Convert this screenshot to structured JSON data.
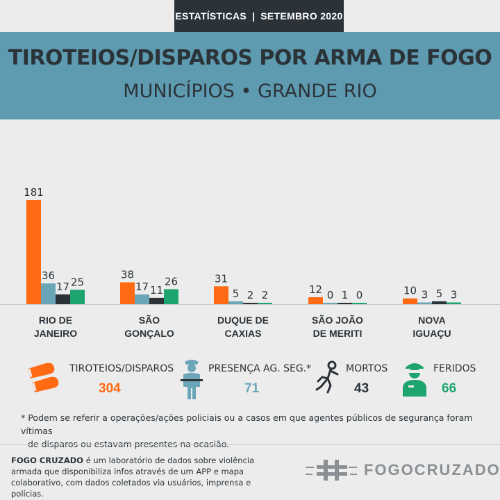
{
  "header": {
    "tab_left": "ESTATÍSTICAS",
    "tab_sep": "|",
    "tab_right": "SETEMBRO 2020",
    "title": "TIROTEIOS/DISPAROS POR ARMA DE FOGO",
    "subtitle": "MUNICÍPIOS • GRANDE RIO"
  },
  "colors": {
    "tiroteios": "#ff6a13",
    "agentes": "#6aa5b8",
    "mortos": "#2b3339",
    "feridos": "#1ea46f",
    "banner": "#5e9bb0",
    "dark": "#2b3339"
  },
  "chart_data": {
    "type": "bar",
    "categories": [
      "RIO DE JANEIRO",
      "SÃO GONÇALO",
      "DUQUE DE CAXIAS",
      "SÃO JOÃO DE MERITI",
      "NOVA IGUAÇU"
    ],
    "category_lines": [
      [
        "RIO DE",
        "JANEIRO"
      ],
      [
        "SÃO",
        "GONÇALO"
      ],
      [
        "DUQUE DE",
        "CAXIAS"
      ],
      [
        "SÃO JOÃO",
        "DE MERITI"
      ],
      [
        "NOVA",
        "IGUAÇU"
      ]
    ],
    "series": [
      {
        "name": "TIROTEIOS/DISPAROS",
        "color": "#ff6a13",
        "values": [
          181,
          38,
          31,
          12,
          10
        ]
      },
      {
        "name": "PRESENÇA AG. SEG.*",
        "color": "#6aa5b8",
        "values": [
          36,
          17,
          5,
          0,
          3
        ]
      },
      {
        "name": "MORTOS",
        "color": "#2b3339",
        "values": [
          17,
          11,
          2,
          1,
          5
        ]
      },
      {
        "name": "FERIDOS",
        "color": "#1ea46f",
        "values": [
          25,
          26,
          2,
          0,
          3
        ]
      }
    ],
    "ylim": [
      0,
      181
    ],
    "grid": false,
    "legend_placement": "bottom"
  },
  "legend": [
    {
      "label": "TIROTEIOS/DISPAROS",
      "total": "304",
      "color": "#ff6a13",
      "icon": "bullets-icon"
    },
    {
      "label": "PRESENÇA AG. SEG.*",
      "total": "71",
      "color": "#6aa5b8",
      "icon": "police-officer-icon"
    },
    {
      "label": "MORTOS",
      "total": "43",
      "color": "#2b3339",
      "icon": "body-outline-icon"
    },
    {
      "label": "FERIDOS",
      "total": "66",
      "color": "#1ea46f",
      "icon": "injured-person-icon"
    }
  ],
  "note": {
    "line1": "* Podem se referir a operações/ações policiais ou a casos em que agentes públicos de segurança foram vítimas",
    "line2": "de disparos ou estavam presentes na ocasião."
  },
  "about": {
    "org": "FOGO CRUZADO",
    "text": " é um laboratório de dados sobre violência armada que disponibiliza infos através de um APP e mapa colaborativo, com dados coletados via usuários, imprensa e polícias."
  },
  "brand": {
    "name": "FOGOCRUZADO",
    "icon": "hashtag-logo-icon"
  }
}
